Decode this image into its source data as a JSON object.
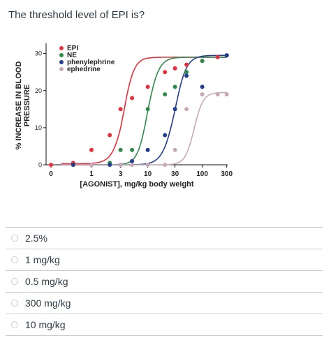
{
  "question": {
    "text": "The threshold level of EPI is?"
  },
  "answers": [
    {
      "label": "2.5%"
    },
    {
      "label": "1 mg/kg"
    },
    {
      "label": "0.5 mg/kg"
    },
    {
      "label": "300 mg/kg"
    },
    {
      "label": "10 mg/kg"
    }
  ],
  "chart_data": {
    "type": "scatter",
    "title": "",
    "xlabel": "[AGONIST], mg/kg body weight",
    "ylabel": "% INCREASE IN BLOOD PRESSURE",
    "xscale": "log",
    "x_ticks": [
      "0",
      "1",
      "3",
      "10",
      "30",
      "100",
      "300"
    ],
    "y_ticks": [
      "0",
      "10",
      "20",
      "30"
    ],
    "ylim": [
      0,
      32
    ],
    "grid": false,
    "legend_position": "top-left",
    "series": [
      {
        "name": "EPI",
        "color": "#e8303a",
        "x": [
          0,
          0.5,
          1,
          2,
          3,
          5,
          10,
          20,
          30,
          50,
          100,
          200,
          300
        ],
        "y": [
          0,
          0.5,
          4,
          8,
          15,
          18,
          21,
          25,
          26,
          27,
          28,
          29,
          29.5
        ],
        "curve": [
          0.3,
          3.5,
          4.5,
          29
        ]
      },
      {
        "name": "NE",
        "color": "#2e8b4a",
        "x": [
          0.5,
          1,
          2,
          3,
          5,
          10,
          20,
          30,
          50,
          100,
          300
        ],
        "y": [
          0,
          0,
          0.5,
          4,
          4,
          15,
          19,
          21,
          25,
          28,
          29.5
        ],
        "curve": [
          0,
          10,
          4.5,
          29
        ]
      },
      {
        "name": "phenylephrine",
        "color": "#223d8f",
        "x": [
          0.5,
          1,
          2,
          3,
          5,
          10,
          20,
          30,
          50,
          100,
          300
        ],
        "y": [
          0,
          0,
          0,
          0,
          1,
          4,
          8,
          15,
          24,
          21,
          29.5
        ],
        "curve": [
          0,
          30,
          4,
          29.5
        ]
      },
      {
        "name": "ephedrine",
        "color": "#c9a9b7",
        "x": [
          1,
          3,
          5,
          10,
          20,
          30,
          50,
          100,
          200,
          300
        ],
        "y": [
          0,
          0,
          0,
          0,
          0,
          4,
          15,
          19,
          19,
          19
        ],
        "curve": [
          0,
          70,
          5,
          19.5
        ]
      }
    ]
  }
}
